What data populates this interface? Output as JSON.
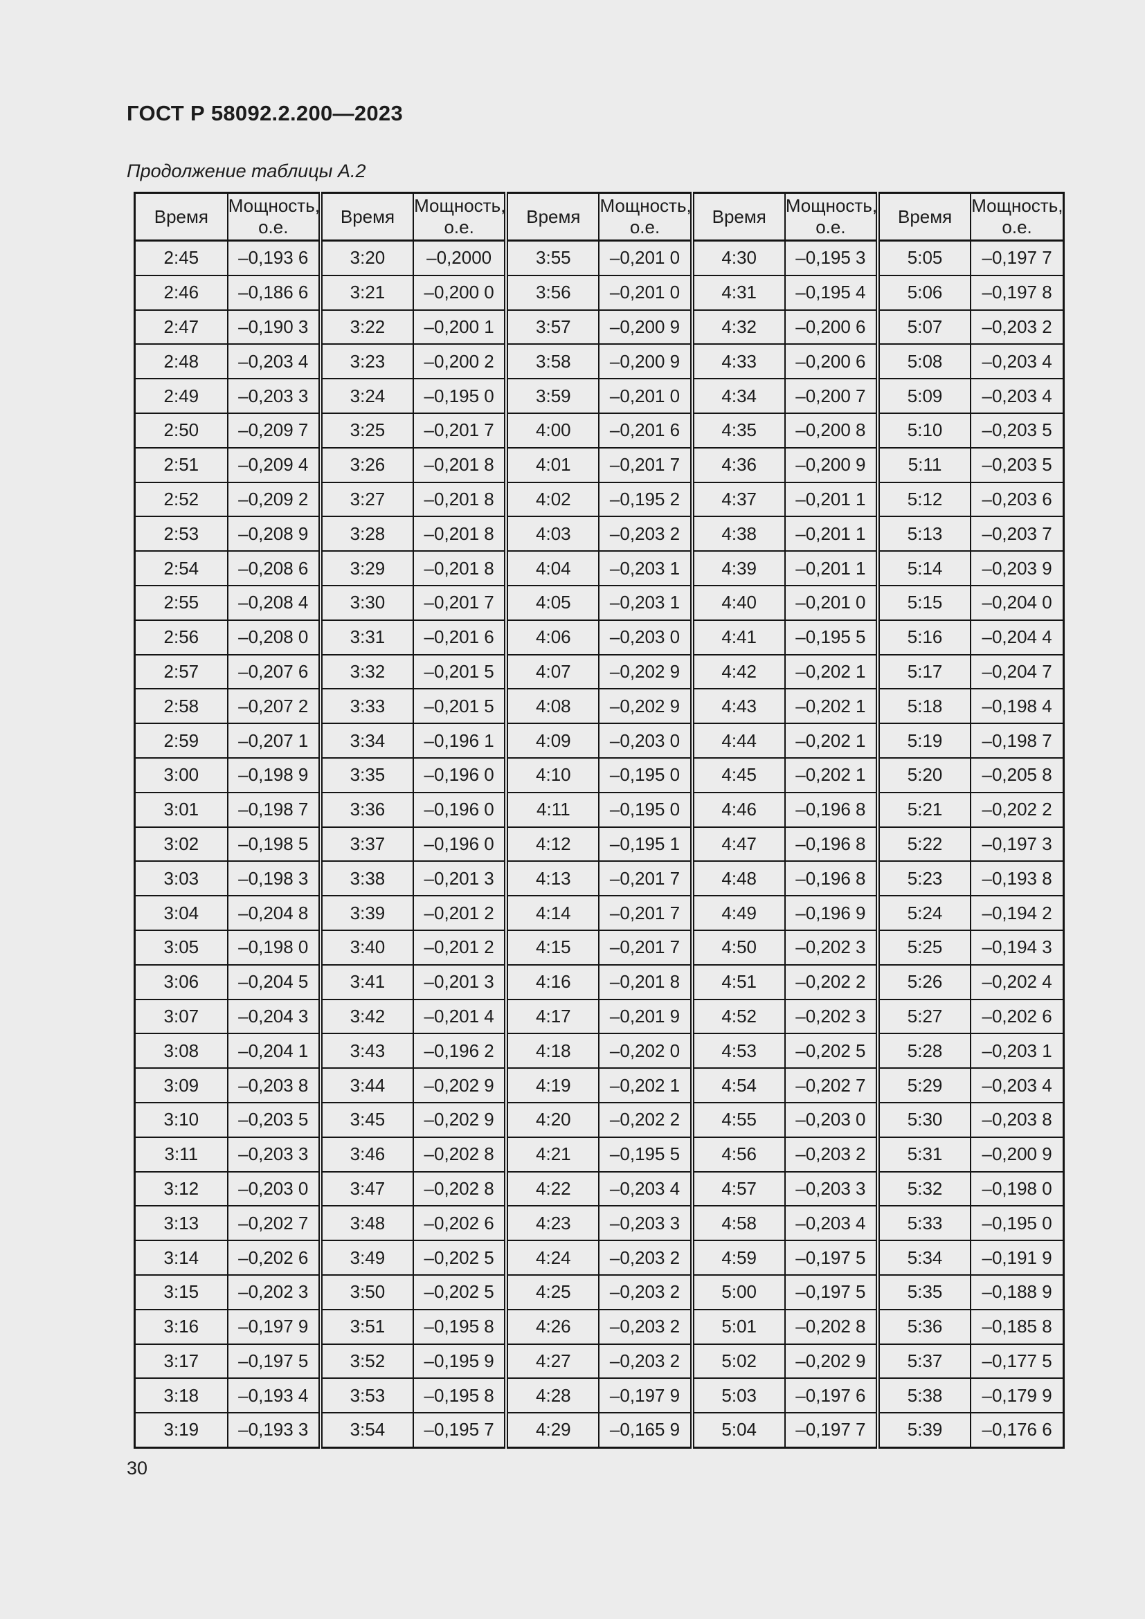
{
  "page": {
    "title": "ГОСТ Р 58092.2.200—2023",
    "caption": "Продолжение таблицы А.2",
    "page_number": "30"
  },
  "table": {
    "headers": {
      "time": "Время",
      "power_line1": "Мощность,",
      "power_line2": "о.е."
    },
    "pairs": [
      {
        "rows": [
          [
            "2:45",
            "–0,193 6"
          ],
          [
            "2:46",
            "–0,186 6"
          ],
          [
            "2:47",
            "–0,190 3"
          ],
          [
            "2:48",
            "–0,203 4"
          ],
          [
            "2:49",
            "–0,203 3"
          ],
          [
            "2:50",
            "–0,209 7"
          ],
          [
            "2:51",
            "–0,209 4"
          ],
          [
            "2:52",
            "–0,209 2"
          ],
          [
            "2:53",
            "–0,208 9"
          ],
          [
            "2:54",
            "–0,208 6"
          ],
          [
            "2:55",
            "–0,208 4"
          ],
          [
            "2:56",
            "–0,208 0"
          ],
          [
            "2:57",
            "–0,207 6"
          ],
          [
            "2:58",
            "–0,207 2"
          ],
          [
            "2:59",
            "–0,207 1"
          ],
          [
            "3:00",
            "–0,198 9"
          ],
          [
            "3:01",
            "–0,198 7"
          ],
          [
            "3:02",
            "–0,198 5"
          ],
          [
            "3:03",
            "–0,198 3"
          ],
          [
            "3:04",
            "–0,204 8"
          ],
          [
            "3:05",
            "–0,198 0"
          ],
          [
            "3:06",
            "–0,204 5"
          ],
          [
            "3:07",
            "–0,204 3"
          ],
          [
            "3:08",
            "–0,204 1"
          ],
          [
            "3:09",
            "–0,203 8"
          ],
          [
            "3:10",
            "–0,203 5"
          ],
          [
            "3:11",
            "–0,203 3"
          ],
          [
            "3:12",
            "–0,203 0"
          ],
          [
            "3:13",
            "–0,202 7"
          ],
          [
            "3:14",
            "–0,202 6"
          ],
          [
            "3:15",
            "–0,202 3"
          ],
          [
            "3:16",
            "–0,197 9"
          ],
          [
            "3:17",
            "–0,197 5"
          ],
          [
            "3:18",
            "–0,193 4"
          ],
          [
            "3:19",
            "–0,193 3"
          ]
        ]
      },
      {
        "rows": [
          [
            "3:20",
            "–0,2000"
          ],
          [
            "3:21",
            "–0,200 0"
          ],
          [
            "3:22",
            "–0,200 1"
          ],
          [
            "3:23",
            "–0,200 2"
          ],
          [
            "3:24",
            "–0,195 0"
          ],
          [
            "3:25",
            "–0,201 7"
          ],
          [
            "3:26",
            "–0,201 8"
          ],
          [
            "3:27",
            "–0,201 8"
          ],
          [
            "3:28",
            "–0,201 8"
          ],
          [
            "3:29",
            "–0,201 8"
          ],
          [
            "3:30",
            "–0,201 7"
          ],
          [
            "3:31",
            "–0,201 6"
          ],
          [
            "3:32",
            "–0,201 5"
          ],
          [
            "3:33",
            "–0,201 5"
          ],
          [
            "3:34",
            "–0,196 1"
          ],
          [
            "3:35",
            "–0,196 0"
          ],
          [
            "3:36",
            "–0,196 0"
          ],
          [
            "3:37",
            "–0,196 0"
          ],
          [
            "3:38",
            "–0,201 3"
          ],
          [
            "3:39",
            "–0,201 2"
          ],
          [
            "3:40",
            "–0,201 2"
          ],
          [
            "3:41",
            "–0,201 3"
          ],
          [
            "3:42",
            "–0,201 4"
          ],
          [
            "3:43",
            "–0,196 2"
          ],
          [
            "3:44",
            "–0,202 9"
          ],
          [
            "3:45",
            "–0,202 9"
          ],
          [
            "3:46",
            "–0,202 8"
          ],
          [
            "3:47",
            "–0,202 8"
          ],
          [
            "3:48",
            "–0,202 6"
          ],
          [
            "3:49",
            "–0,202 5"
          ],
          [
            "3:50",
            "–0,202 5"
          ],
          [
            "3:51",
            "–0,195 8"
          ],
          [
            "3:52",
            "–0,195 9"
          ],
          [
            "3:53",
            "–0,195 8"
          ],
          [
            "3:54",
            "–0,195 7"
          ]
        ]
      },
      {
        "rows": [
          [
            "3:55",
            "–0,201 0"
          ],
          [
            "3:56",
            "–0,201 0"
          ],
          [
            "3:57",
            "–0,200 9"
          ],
          [
            "3:58",
            "–0,200 9"
          ],
          [
            "3:59",
            "–0,201 0"
          ],
          [
            "4:00",
            "–0,201 6"
          ],
          [
            "4:01",
            "–0,201 7"
          ],
          [
            "4:02",
            "–0,195 2"
          ],
          [
            "4:03",
            "–0,203 2"
          ],
          [
            "4:04",
            "–0,203 1"
          ],
          [
            "4:05",
            "–0,203 1"
          ],
          [
            "4:06",
            "–0,203 0"
          ],
          [
            "4:07",
            "–0,202 9"
          ],
          [
            "4:08",
            "–0,202 9"
          ],
          [
            "4:09",
            "–0,203 0"
          ],
          [
            "4:10",
            "–0,195 0"
          ],
          [
            "4:11",
            "–0,195 0"
          ],
          [
            "4:12",
            "–0,195 1"
          ],
          [
            "4:13",
            "–0,201 7"
          ],
          [
            "4:14",
            "–0,201 7"
          ],
          [
            "4:15",
            "–0,201 7"
          ],
          [
            "4:16",
            "–0,201 8"
          ],
          [
            "4:17",
            "–0,201 9"
          ],
          [
            "4:18",
            "–0,202 0"
          ],
          [
            "4:19",
            "–0,202 1"
          ],
          [
            "4:20",
            "–0,202 2"
          ],
          [
            "4:21",
            "–0,195 5"
          ],
          [
            "4:22",
            "–0,203 4"
          ],
          [
            "4:23",
            "–0,203 3"
          ],
          [
            "4:24",
            "–0,203 2"
          ],
          [
            "4:25",
            "–0,203 2"
          ],
          [
            "4:26",
            "–0,203 2"
          ],
          [
            "4:27",
            "–0,203 2"
          ],
          [
            "4:28",
            "–0,197 9"
          ],
          [
            "4:29",
            "–0,165 9"
          ]
        ]
      },
      {
        "rows": [
          [
            "4:30",
            "–0,195 3"
          ],
          [
            "4:31",
            "–0,195 4"
          ],
          [
            "4:32",
            "–0,200 6"
          ],
          [
            "4:33",
            "–0,200 6"
          ],
          [
            "4:34",
            "–0,200 7"
          ],
          [
            "4:35",
            "–0,200 8"
          ],
          [
            "4:36",
            "–0,200 9"
          ],
          [
            "4:37",
            "–0,201 1"
          ],
          [
            "4:38",
            "–0,201 1"
          ],
          [
            "4:39",
            "–0,201 1"
          ],
          [
            "4:40",
            "–0,201 0"
          ],
          [
            "4:41",
            "–0,195 5"
          ],
          [
            "4:42",
            "–0,202 1"
          ],
          [
            "4:43",
            "–0,202 1"
          ],
          [
            "4:44",
            "–0,202 1"
          ],
          [
            "4:45",
            "–0,202 1"
          ],
          [
            "4:46",
            "–0,196 8"
          ],
          [
            "4:47",
            "–0,196 8"
          ],
          [
            "4:48",
            "–0,196 8"
          ],
          [
            "4:49",
            "–0,196 9"
          ],
          [
            "4:50",
            "–0,202 3"
          ],
          [
            "4:51",
            "–0,202 2"
          ],
          [
            "4:52",
            "–0,202 3"
          ],
          [
            "4:53",
            "–0,202 5"
          ],
          [
            "4:54",
            "–0,202 7"
          ],
          [
            "4:55",
            "–0,203 0"
          ],
          [
            "4:56",
            "–0,203 2"
          ],
          [
            "4:57",
            "–0,203 3"
          ],
          [
            "4:58",
            "–0,203 4"
          ],
          [
            "4:59",
            "–0,197 5"
          ],
          [
            "5:00",
            "–0,197 5"
          ],
          [
            "5:01",
            "–0,202 8"
          ],
          [
            "5:02",
            "–0,202 9"
          ],
          [
            "5:03",
            "–0,197 6"
          ],
          [
            "5:04",
            "–0,197 7"
          ]
        ]
      },
      {
        "rows": [
          [
            "5:05",
            "–0,197 7"
          ],
          [
            "5:06",
            "–0,197 8"
          ],
          [
            "5:07",
            "–0,203 2"
          ],
          [
            "5:08",
            "–0,203 4"
          ],
          [
            "5:09",
            "–0,203 4"
          ],
          [
            "5:10",
            "–0,203 5"
          ],
          [
            "5:11",
            "–0,203 5"
          ],
          [
            "5:12",
            "–0,203 6"
          ],
          [
            "5:13",
            "–0,203 7"
          ],
          [
            "5:14",
            "–0,203 9"
          ],
          [
            "5:15",
            "–0,204 0"
          ],
          [
            "5:16",
            "–0,204 4"
          ],
          [
            "5:17",
            "–0,204 7"
          ],
          [
            "5:18",
            "–0,198 4"
          ],
          [
            "5:19",
            "–0,198 7"
          ],
          [
            "5:20",
            "–0,205 8"
          ],
          [
            "5:21",
            "–0,202 2"
          ],
          [
            "5:22",
            "–0,197 3"
          ],
          [
            "5:23",
            "–0,193 8"
          ],
          [
            "5:24",
            "–0,194 2"
          ],
          [
            "5:25",
            "–0,194 3"
          ],
          [
            "5:26",
            "–0,202 4"
          ],
          [
            "5:27",
            "–0,202 6"
          ],
          [
            "5:28",
            "–0,203 1"
          ],
          [
            "5:29",
            "–0,203 4"
          ],
          [
            "5:30",
            "–0,203 8"
          ],
          [
            "5:31",
            "–0,200 9"
          ],
          [
            "5:32",
            "–0,198 0"
          ],
          [
            "5:33",
            "–0,195 0"
          ],
          [
            "5:34",
            "–0,191 9"
          ],
          [
            "5:35",
            "–0,188 9"
          ],
          [
            "5:36",
            "–0,185 8"
          ],
          [
            "5:37",
            "–0,177 5"
          ],
          [
            "5:38",
            "–0,179 9"
          ],
          [
            "5:39",
            "–0,176 6"
          ]
        ]
      }
    ]
  }
}
